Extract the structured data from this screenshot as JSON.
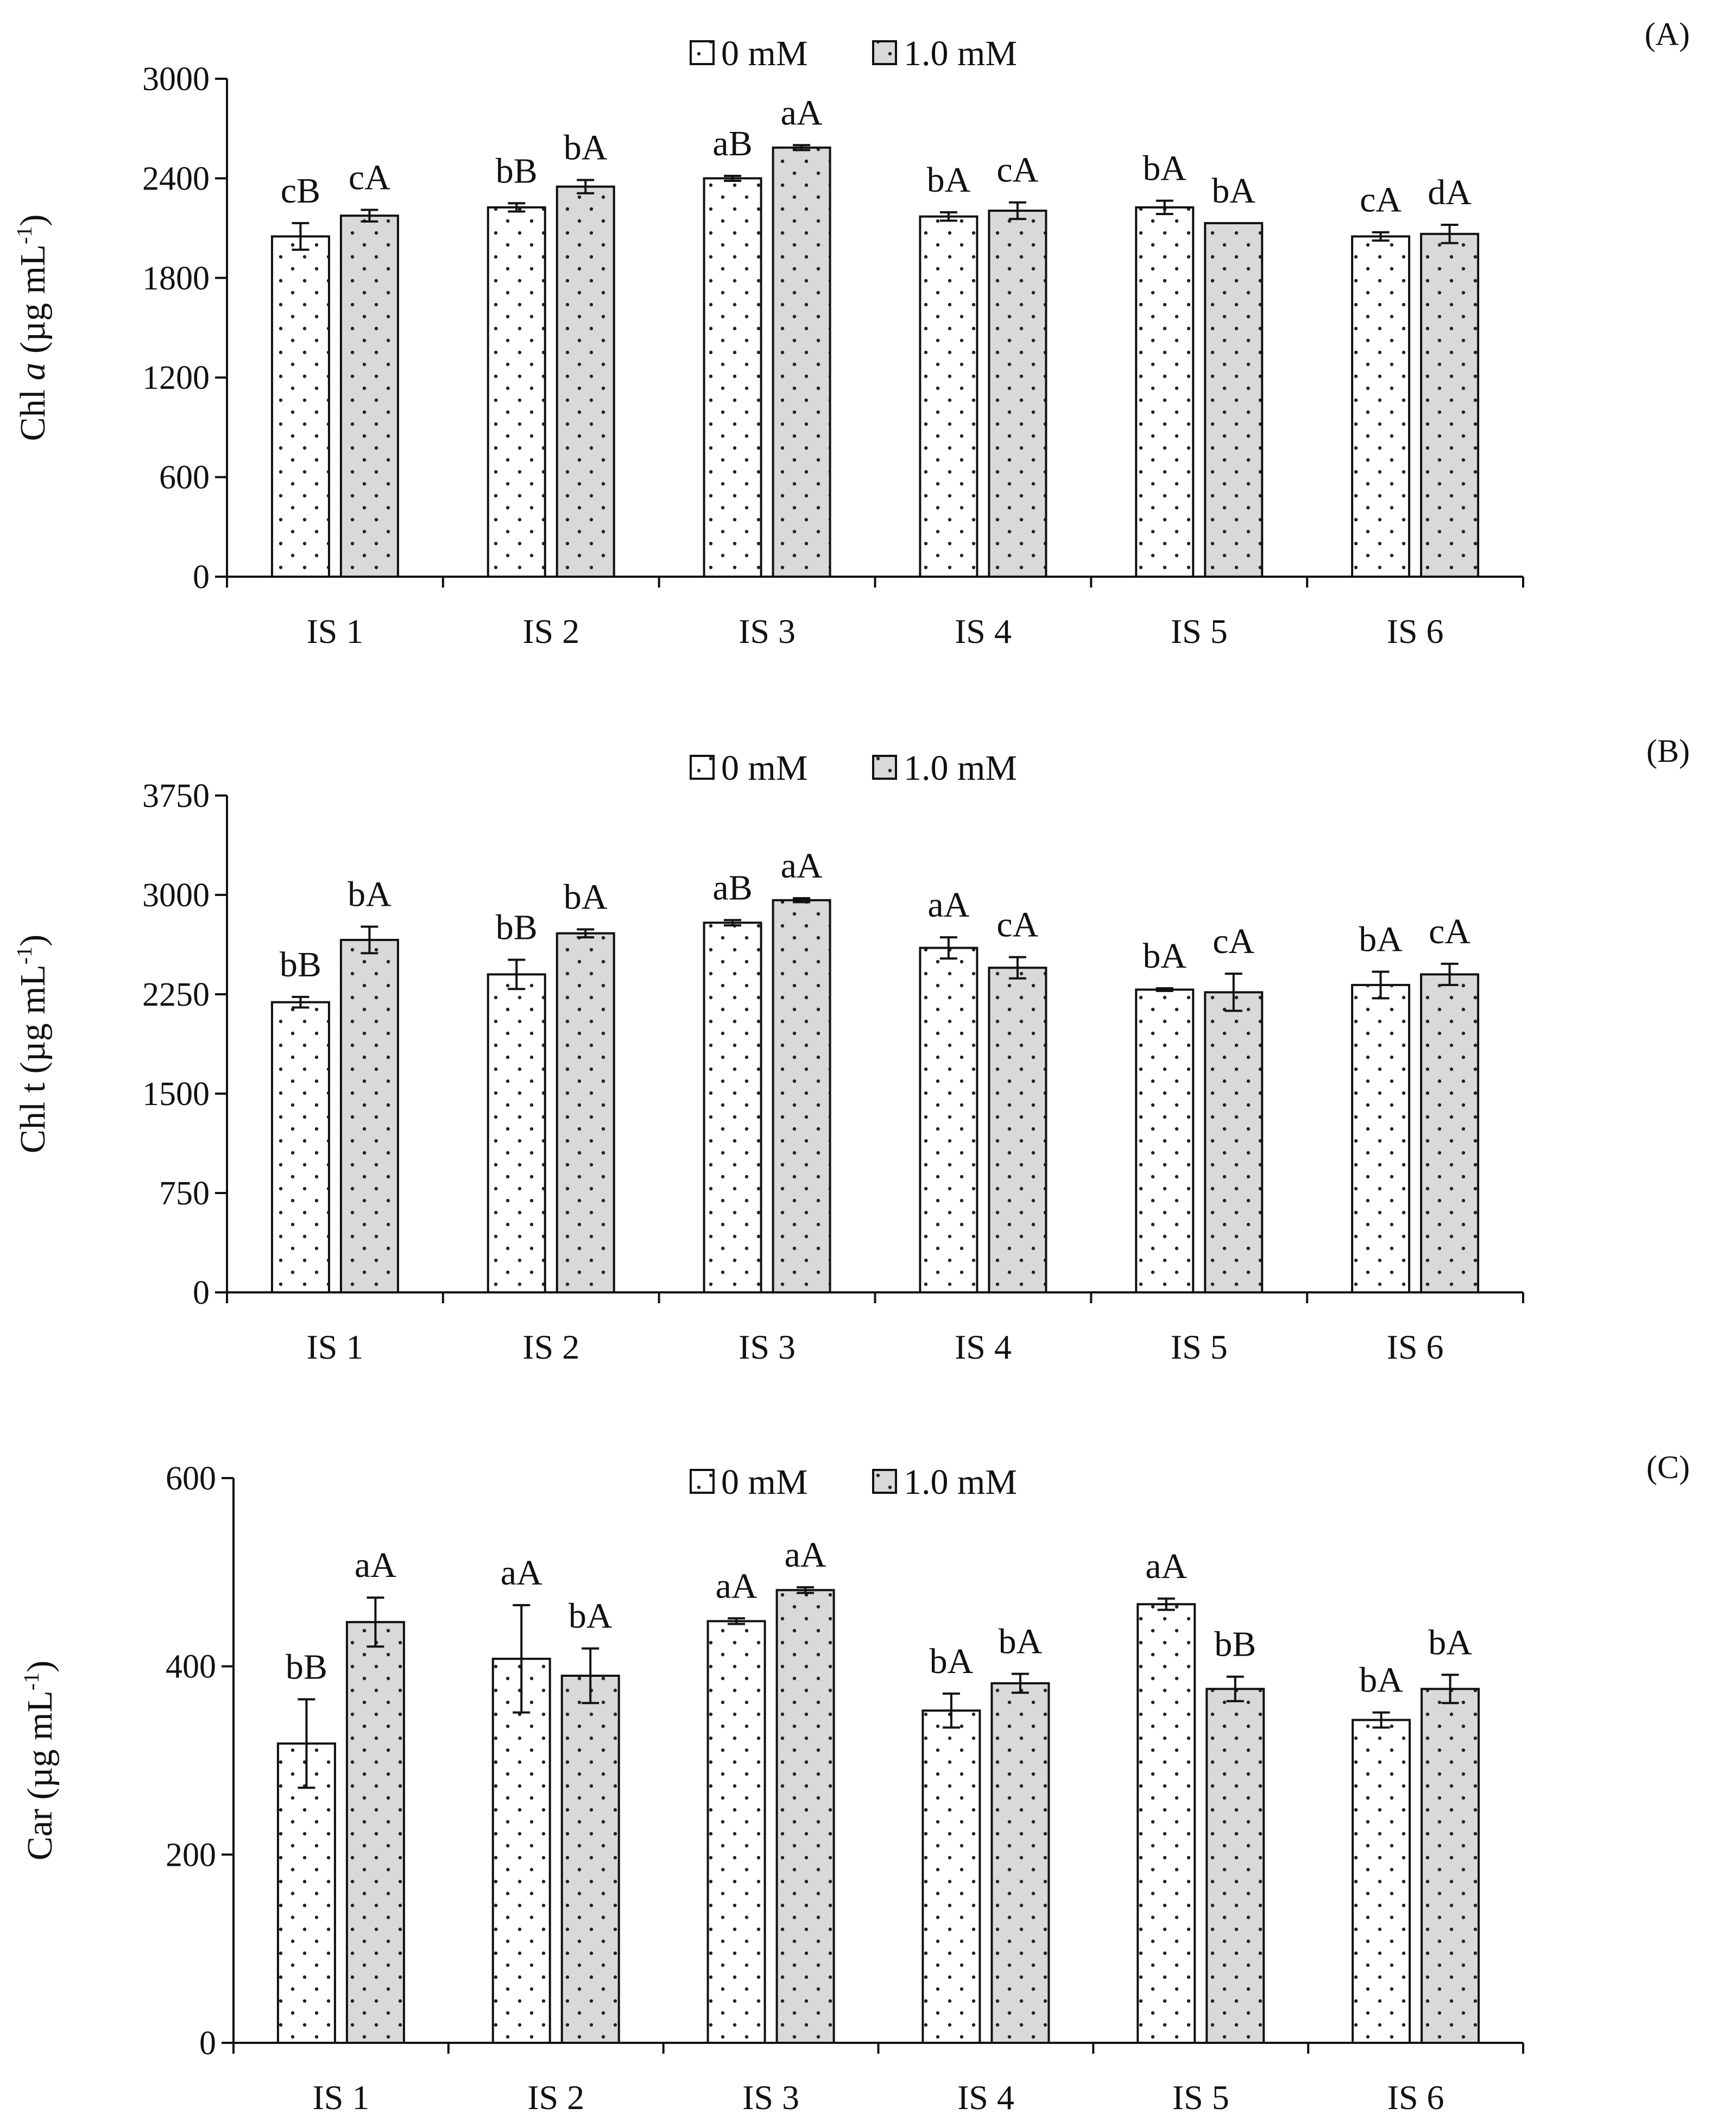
{
  "colors": {
    "bar_0mM_fill": "#ffffff",
    "bar_1mM_fill": "#d9d9d9",
    "stroke": "#111111",
    "dots": "#222222"
  },
  "chart_data": [
    {
      "type": "bar",
      "panel_label": "(A)",
      "ylabel_prefix": "Chl ",
      "ylabel_italic": "a",
      "ylabel_unit_open": " (µg mL",
      "ylabel_sup": "-1",
      "ylabel_close": ")",
      "ylim": [
        0,
        3000
      ],
      "yticks": [
        0,
        600,
        1200,
        1800,
        2400,
        3000
      ],
      "categories": [
        "IS 1",
        "IS 2",
        "IS 3",
        "IS 4",
        "IS 5",
        "IS 6"
      ],
      "series": [
        {
          "name": "0 mM",
          "values": [
            2050,
            2225,
            2400,
            2170,
            2225,
            2050
          ],
          "errors": [
            80,
            25,
            15,
            25,
            40,
            25
          ],
          "labels": [
            "cB",
            "bB",
            "aB",
            "bA",
            "bA",
            "cA"
          ]
        },
        {
          "name": "1.0 mM",
          "values": [
            2175,
            2350,
            2585,
            2205,
            2130,
            2065
          ],
          "errors": [
            35,
            40,
            15,
            50,
            0,
            55
          ],
          "labels": [
            "cA",
            "bA",
            "aA",
            "cA",
            "bA",
            "dA"
          ]
        }
      ]
    },
    {
      "type": "bar",
      "panel_label": "(B)",
      "ylabel_prefix": "Chl t",
      "ylabel_italic": "",
      "ylabel_unit_open": " (µg mL",
      "ylabel_sup": "-1",
      "ylabel_close": ")",
      "ylim": [
        0,
        3750
      ],
      "yticks": [
        0,
        750,
        1500,
        2250,
        3000,
        3750
      ],
      "categories": [
        "IS 1",
        "IS 2",
        "IS 3",
        "IS 4",
        "IS 5",
        "IS 6"
      ],
      "series": [
        {
          "name": "0 mM",
          "values": [
            2190,
            2400,
            2790,
            2600,
            2285,
            2320
          ],
          "errors": [
            40,
            110,
            20,
            80,
            10,
            100
          ],
          "labels": [
            "bB",
            "bB",
            "aB",
            "aA",
            "bA",
            "bA"
          ]
        },
        {
          "name": "1.0 mM",
          "values": [
            2660,
            2710,
            2960,
            2450,
            2265,
            2400
          ],
          "errors": [
            100,
            30,
            15,
            80,
            140,
            80
          ],
          "labels": [
            "bA",
            "bA",
            "aA",
            "cA",
            "cA",
            "cA"
          ]
        }
      ]
    },
    {
      "type": "bar",
      "panel_label": "(C)",
      "ylabel_prefix": "Car",
      "ylabel_italic": "",
      "ylabel_unit_open": " (µg mL",
      "ylabel_sup": "-1",
      "ylabel_close": ")",
      "ylim": [
        0,
        600
      ],
      "yticks": [
        0,
        200,
        400,
        600
      ],
      "categories": [
        "IS 1",
        "IS 2",
        "IS 3",
        "IS 4",
        "IS 5",
        "IS 6"
      ],
      "series": [
        {
          "name": "0 mM",
          "values": [
            318,
            408,
            448,
            353,
            466,
            343
          ],
          "errors": [
            47,
            57,
            3,
            18,
            6,
            8
          ],
          "labels": [
            "bB",
            "aA",
            "aA",
            "bA",
            "aA",
            "bA"
          ]
        },
        {
          "name": "1.0 mM",
          "values": [
            447,
            390,
            481,
            382,
            376,
            376
          ],
          "errors": [
            26,
            29,
            3,
            10,
            13,
            15
          ],
          "labels": [
            "aA",
            "bA",
            "aA",
            "bA",
            "bB",
            "bA"
          ]
        }
      ]
    }
  ]
}
